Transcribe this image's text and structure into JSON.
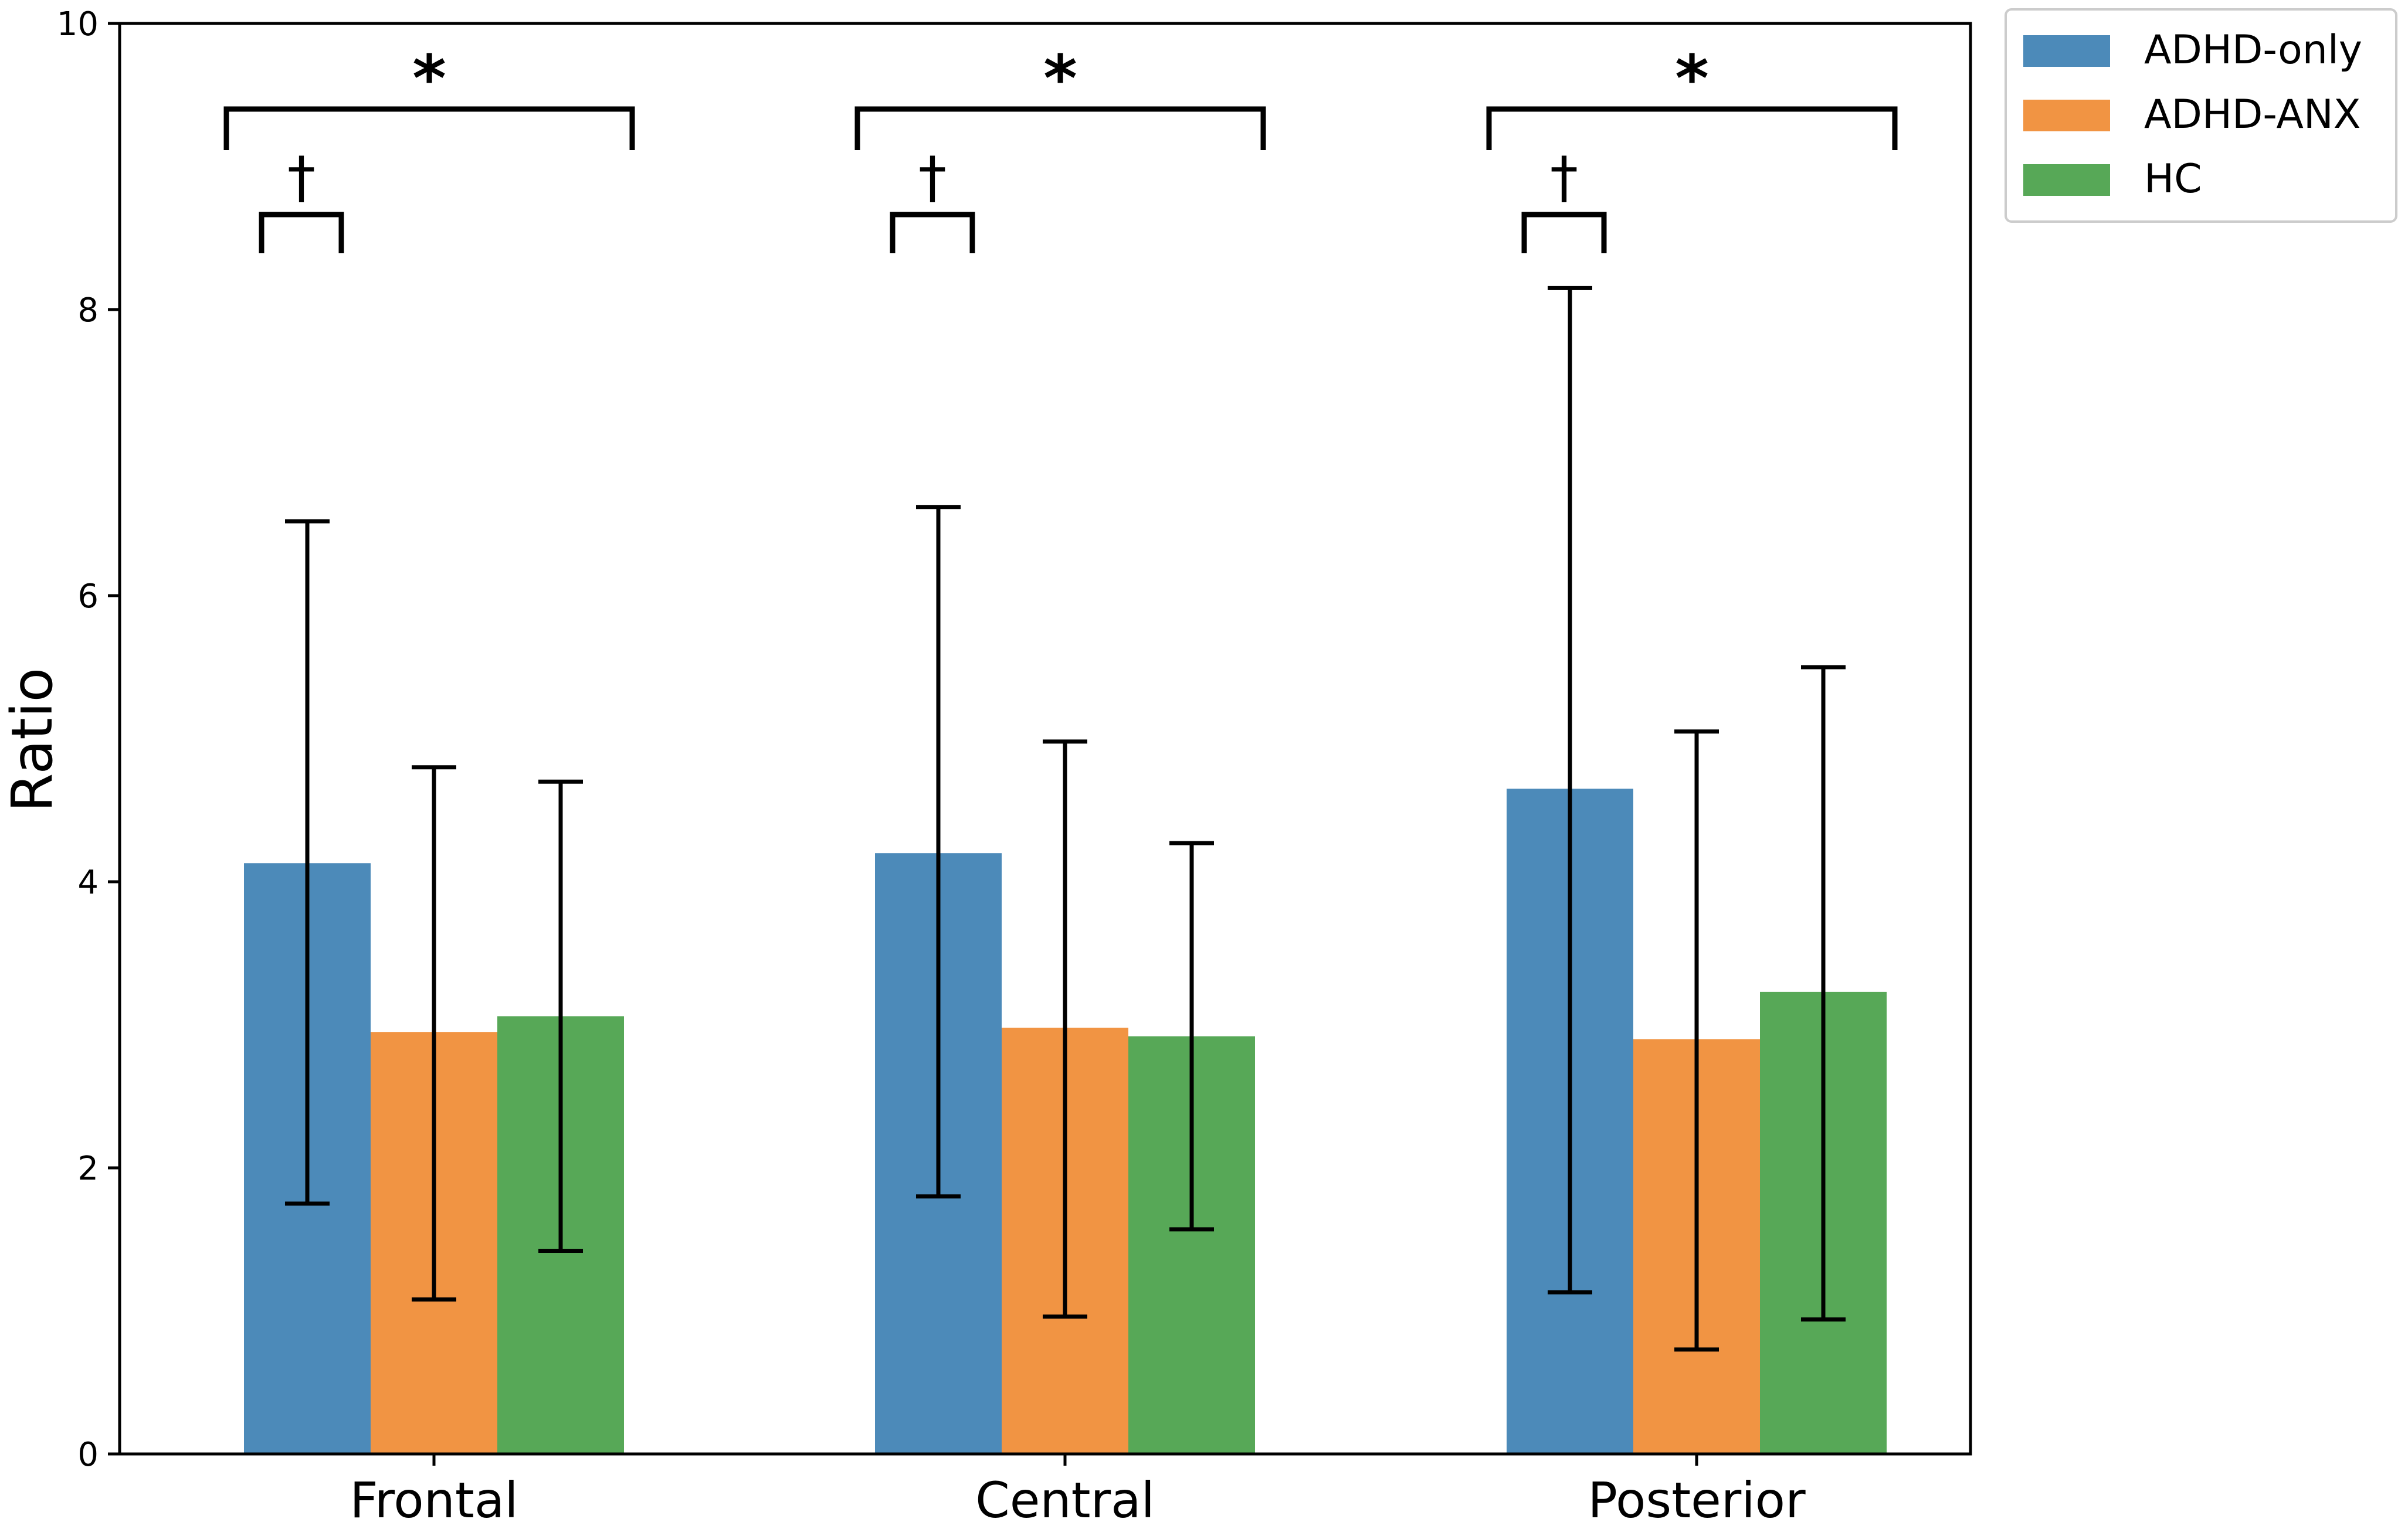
{
  "chart_data": {
    "type": "bar",
    "title": "",
    "xlabel": "",
    "ylabel": "Ratio",
    "ylim": [
      0,
      10
    ],
    "yticks": [
      "0",
      "2",
      "4",
      "6",
      "8",
      "10"
    ],
    "categories": [
      "Frontal",
      "Central",
      "Posterior"
    ],
    "series": [
      {
        "name": "ADHD-only",
        "color": "#4c8ab9",
        "values": [
          4.13,
          4.2,
          4.65
        ],
        "err_low": [
          1.75,
          1.8,
          1.13
        ],
        "err_high": [
          6.52,
          6.62,
          8.15
        ]
      },
      {
        "name": "ADHD-ANX",
        "color": "#f19443",
        "values": [
          2.95,
          2.98,
          2.9
        ],
        "err_low": [
          1.08,
          0.96,
          0.73
        ],
        "err_high": [
          4.8,
          4.98,
          5.05
        ]
      },
      {
        "name": "HC",
        "color": "#57a857",
        "values": [
          3.06,
          2.92,
          3.23
        ],
        "err_low": [
          1.42,
          1.57,
          0.94
        ],
        "err_high": [
          4.7,
          4.27,
          5.5
        ]
      }
    ],
    "legend": "top-right outside",
    "annotations": [
      {
        "category": "Frontal",
        "symbol": "*",
        "from_series": 0,
        "to_series": 2,
        "level": "upper"
      },
      {
        "category": "Frontal",
        "symbol": "†",
        "from_series": 0,
        "to_series": 1,
        "level": "lower"
      },
      {
        "category": "Central",
        "symbol": "*",
        "from_series": 0,
        "to_series": 2,
        "level": "upper"
      },
      {
        "category": "Central",
        "symbol": "†",
        "from_series": 0,
        "to_series": 1,
        "level": "lower"
      },
      {
        "category": "Posterior",
        "symbol": "*",
        "from_series": 0,
        "to_series": 2,
        "level": "upper"
      },
      {
        "category": "Posterior",
        "symbol": "†",
        "from_series": 0,
        "to_series": 1,
        "level": "lower"
      }
    ]
  }
}
